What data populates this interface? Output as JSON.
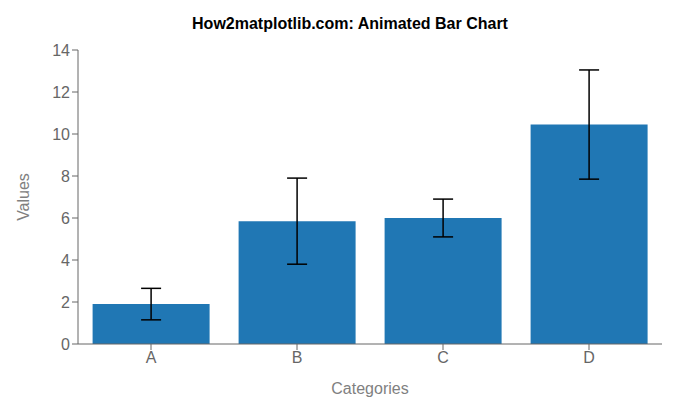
{
  "chart_data": {
    "type": "bar",
    "title": "How2matplotlib.com: Animated Bar Chart",
    "xlabel": "Categories",
    "ylabel": "Values",
    "categories": [
      "A",
      "B",
      "C",
      "D"
    ],
    "values": [
      1.9,
      5.85,
      6.0,
      10.45
    ],
    "errors": [
      0.75,
      2.05,
      0.9,
      2.6
    ],
    "color": "#2077b4",
    "ylim": [
      0,
      14
    ],
    "yticks": [
      0,
      2,
      4,
      6,
      8,
      10,
      12,
      14
    ],
    "grid": false
  }
}
